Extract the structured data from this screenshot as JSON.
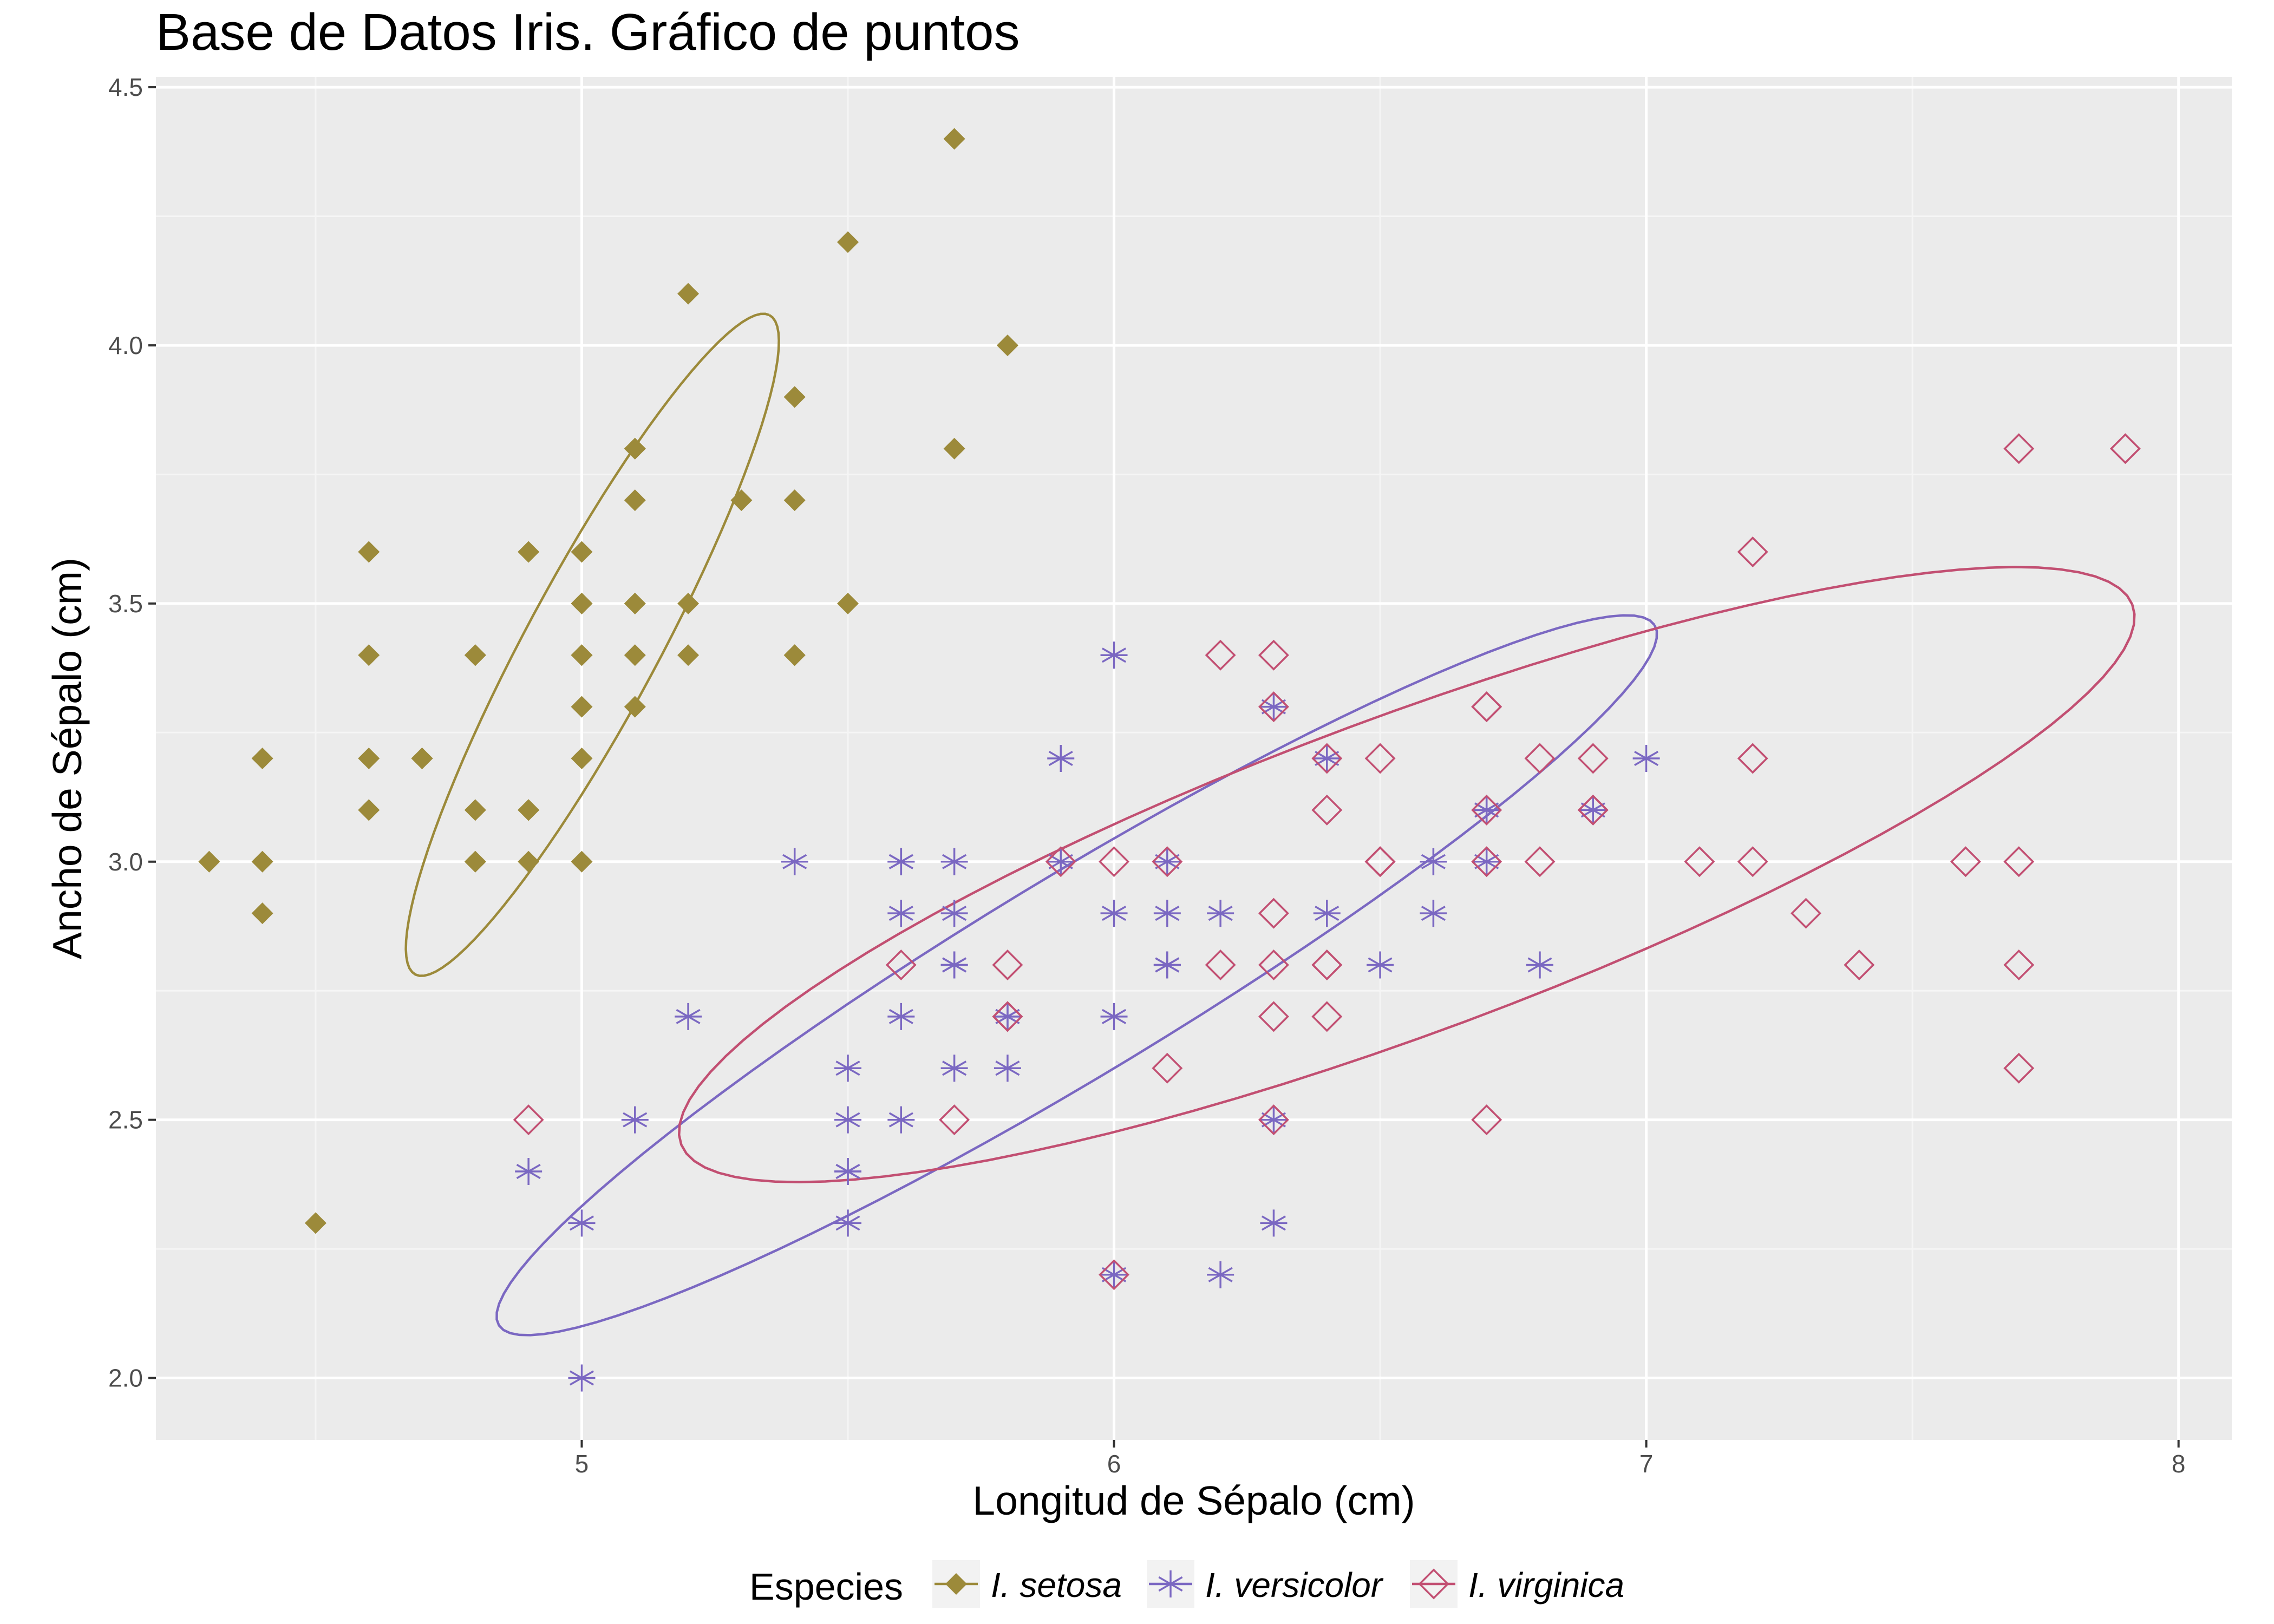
{
  "chart_data": {
    "type": "scatter",
    "title": "Base de Datos Iris. Gráfico de puntos",
    "xlabel": "Longitud de Sépalo (cm)",
    "ylabel": "Ancho de Sépalo (cm)",
    "xlim": [
      4.2,
      8.1
    ],
    "ylim": [
      1.88,
      4.52
    ],
    "x_ticks": [
      5,
      6,
      7,
      8
    ],
    "x_tick_labels": [
      "5",
      "6",
      "7",
      "8"
    ],
    "y_ticks": [
      2.0,
      2.5,
      3.0,
      3.5,
      4.0,
      4.5
    ],
    "y_tick_labels": [
      "2.0",
      "2.5",
      "3.0",
      "3.5",
      "4.0",
      "4.5"
    ],
    "grid": true,
    "panel_background": "#ebebeb",
    "legend": {
      "title": "Especies",
      "position": "bottom"
    },
    "series": [
      {
        "name": "I. setosa",
        "color": "#9c8a3a",
        "shape": "filled-diamond",
        "points": [
          [
            5.1,
            3.5
          ],
          [
            4.9,
            3.0
          ],
          [
            4.7,
            3.2
          ],
          [
            4.6,
            3.1
          ],
          [
            5.0,
            3.6
          ],
          [
            5.4,
            3.9
          ],
          [
            4.6,
            3.4
          ],
          [
            5.0,
            3.4
          ],
          [
            4.4,
            2.9
          ],
          [
            4.9,
            3.1
          ],
          [
            5.4,
            3.7
          ],
          [
            4.8,
            3.4
          ],
          [
            4.8,
            3.0
          ],
          [
            4.3,
            3.0
          ],
          [
            5.8,
            4.0
          ],
          [
            5.7,
            4.4
          ],
          [
            5.4,
            3.9
          ],
          [
            5.1,
            3.5
          ],
          [
            5.7,
            3.8
          ],
          [
            5.1,
            3.8
          ],
          [
            5.4,
            3.4
          ],
          [
            5.1,
            3.7
          ],
          [
            4.6,
            3.6
          ],
          [
            5.1,
            3.3
          ],
          [
            4.8,
            3.4
          ],
          [
            5.0,
            3.0
          ],
          [
            5.0,
            3.4
          ],
          [
            5.2,
            3.5
          ],
          [
            5.2,
            3.4
          ],
          [
            4.7,
            3.2
          ],
          [
            4.8,
            3.1
          ],
          [
            5.4,
            3.4
          ],
          [
            5.2,
            4.1
          ],
          [
            5.5,
            4.2
          ],
          [
            4.9,
            3.1
          ],
          [
            5.0,
            3.2
          ],
          [
            5.5,
            3.5
          ],
          [
            4.9,
            3.6
          ],
          [
            4.4,
            3.0
          ],
          [
            5.1,
            3.4
          ],
          [
            5.0,
            3.5
          ],
          [
            4.5,
            2.3
          ],
          [
            4.4,
            3.2
          ],
          [
            5.0,
            3.5
          ],
          [
            5.1,
            3.8
          ],
          [
            4.8,
            3.0
          ],
          [
            5.1,
            3.8
          ],
          [
            4.6,
            3.2
          ],
          [
            5.3,
            3.7
          ],
          [
            5.0,
            3.3
          ]
        ],
        "ellipse": {
          "cx": 5.02,
          "cy": 3.42,
          "rx": 0.72,
          "ry": 0.125,
          "angle_deg": 62.5
        }
      },
      {
        "name": "I. versicolor",
        "color": "#7b68c2",
        "shape": "asterisk",
        "points": [
          [
            7.0,
            3.2
          ],
          [
            6.4,
            3.2
          ],
          [
            6.9,
            3.1
          ],
          [
            5.5,
            2.3
          ],
          [
            6.5,
            2.8
          ],
          [
            5.7,
            2.8
          ],
          [
            6.3,
            3.3
          ],
          [
            4.9,
            2.4
          ],
          [
            6.6,
            2.9
          ],
          [
            5.2,
            2.7
          ],
          [
            5.0,
            2.0
          ],
          [
            5.9,
            3.0
          ],
          [
            6.0,
            2.2
          ],
          [
            6.1,
            2.9
          ],
          [
            5.6,
            2.9
          ],
          [
            6.7,
            3.1
          ],
          [
            5.6,
            3.0
          ],
          [
            5.8,
            2.7
          ],
          [
            6.2,
            2.2
          ],
          [
            5.6,
            2.5
          ],
          [
            5.9,
            3.2
          ],
          [
            6.1,
            2.8
          ],
          [
            6.3,
            2.5
          ],
          [
            6.1,
            2.8
          ],
          [
            6.4,
            2.9
          ],
          [
            6.6,
            3.0
          ],
          [
            6.8,
            2.8
          ],
          [
            6.7,
            3.0
          ],
          [
            6.0,
            2.9
          ],
          [
            5.7,
            2.6
          ],
          [
            5.5,
            2.4
          ],
          [
            5.5,
            2.4
          ],
          [
            5.8,
            2.7
          ],
          [
            6.0,
            2.7
          ],
          [
            5.4,
            3.0
          ],
          [
            6.0,
            3.4
          ],
          [
            6.7,
            3.1
          ],
          [
            6.3,
            2.3
          ],
          [
            5.6,
            3.0
          ],
          [
            5.5,
            2.5
          ],
          [
            5.5,
            2.6
          ],
          [
            6.1,
            3.0
          ],
          [
            5.8,
            2.6
          ],
          [
            5.0,
            2.3
          ],
          [
            5.6,
            2.7
          ],
          [
            5.7,
            3.0
          ],
          [
            5.7,
            2.9
          ],
          [
            6.2,
            2.9
          ],
          [
            5.1,
            2.5
          ],
          [
            5.7,
            2.8
          ]
        ],
        "ellipse": {
          "cx": 5.93,
          "cy": 2.78,
          "rx": 1.28,
          "ry": 0.19,
          "angle_deg": 32
        }
      },
      {
        "name": "I. virginica",
        "color": "#c24f72",
        "shape": "open-diamond",
        "points": [
          [
            6.3,
            3.3
          ],
          [
            5.8,
            2.7
          ],
          [
            7.1,
            3.0
          ],
          [
            6.3,
            2.9
          ],
          [
            6.5,
            3.0
          ],
          [
            7.6,
            3.0
          ],
          [
            4.9,
            2.5
          ],
          [
            7.3,
            2.9
          ],
          [
            6.7,
            2.5
          ],
          [
            7.2,
            3.6
          ],
          [
            6.5,
            3.2
          ],
          [
            6.4,
            2.7
          ],
          [
            6.8,
            3.0
          ],
          [
            5.7,
            2.5
          ],
          [
            5.8,
            2.8
          ],
          [
            6.4,
            3.2
          ],
          [
            6.5,
            3.0
          ],
          [
            7.7,
            3.8
          ],
          [
            7.7,
            2.6
          ],
          [
            6.0,
            2.2
          ],
          [
            6.9,
            3.2
          ],
          [
            5.6,
            2.8
          ],
          [
            7.7,
            2.8
          ],
          [
            6.3,
            2.7
          ],
          [
            6.7,
            3.3
          ],
          [
            7.2,
            3.2
          ],
          [
            6.2,
            2.8
          ],
          [
            6.1,
            3.0
          ],
          [
            6.4,
            2.8
          ],
          [
            7.2,
            3.0
          ],
          [
            7.4,
            2.8
          ],
          [
            7.9,
            3.8
          ],
          [
            6.4,
            2.8
          ],
          [
            6.3,
            2.8
          ],
          [
            6.1,
            2.6
          ],
          [
            7.7,
            3.0
          ],
          [
            6.3,
            3.4
          ],
          [
            6.4,
            3.1
          ],
          [
            6.0,
            3.0
          ],
          [
            6.9,
            3.1
          ],
          [
            6.7,
            3.1
          ],
          [
            6.9,
            3.1
          ],
          [
            5.8,
            2.7
          ],
          [
            6.8,
            3.2
          ],
          [
            6.7,
            3.3
          ],
          [
            6.7,
            3.0
          ],
          [
            6.3,
            2.5
          ],
          [
            6.5,
            3.0
          ],
          [
            6.2,
            3.4
          ],
          [
            5.9,
            3.0
          ]
        ],
        "ellipse": {
          "cx": 6.55,
          "cy": 2.975,
          "rx": 1.46,
          "ry": 0.305,
          "angle_deg": 21
        }
      }
    ]
  }
}
